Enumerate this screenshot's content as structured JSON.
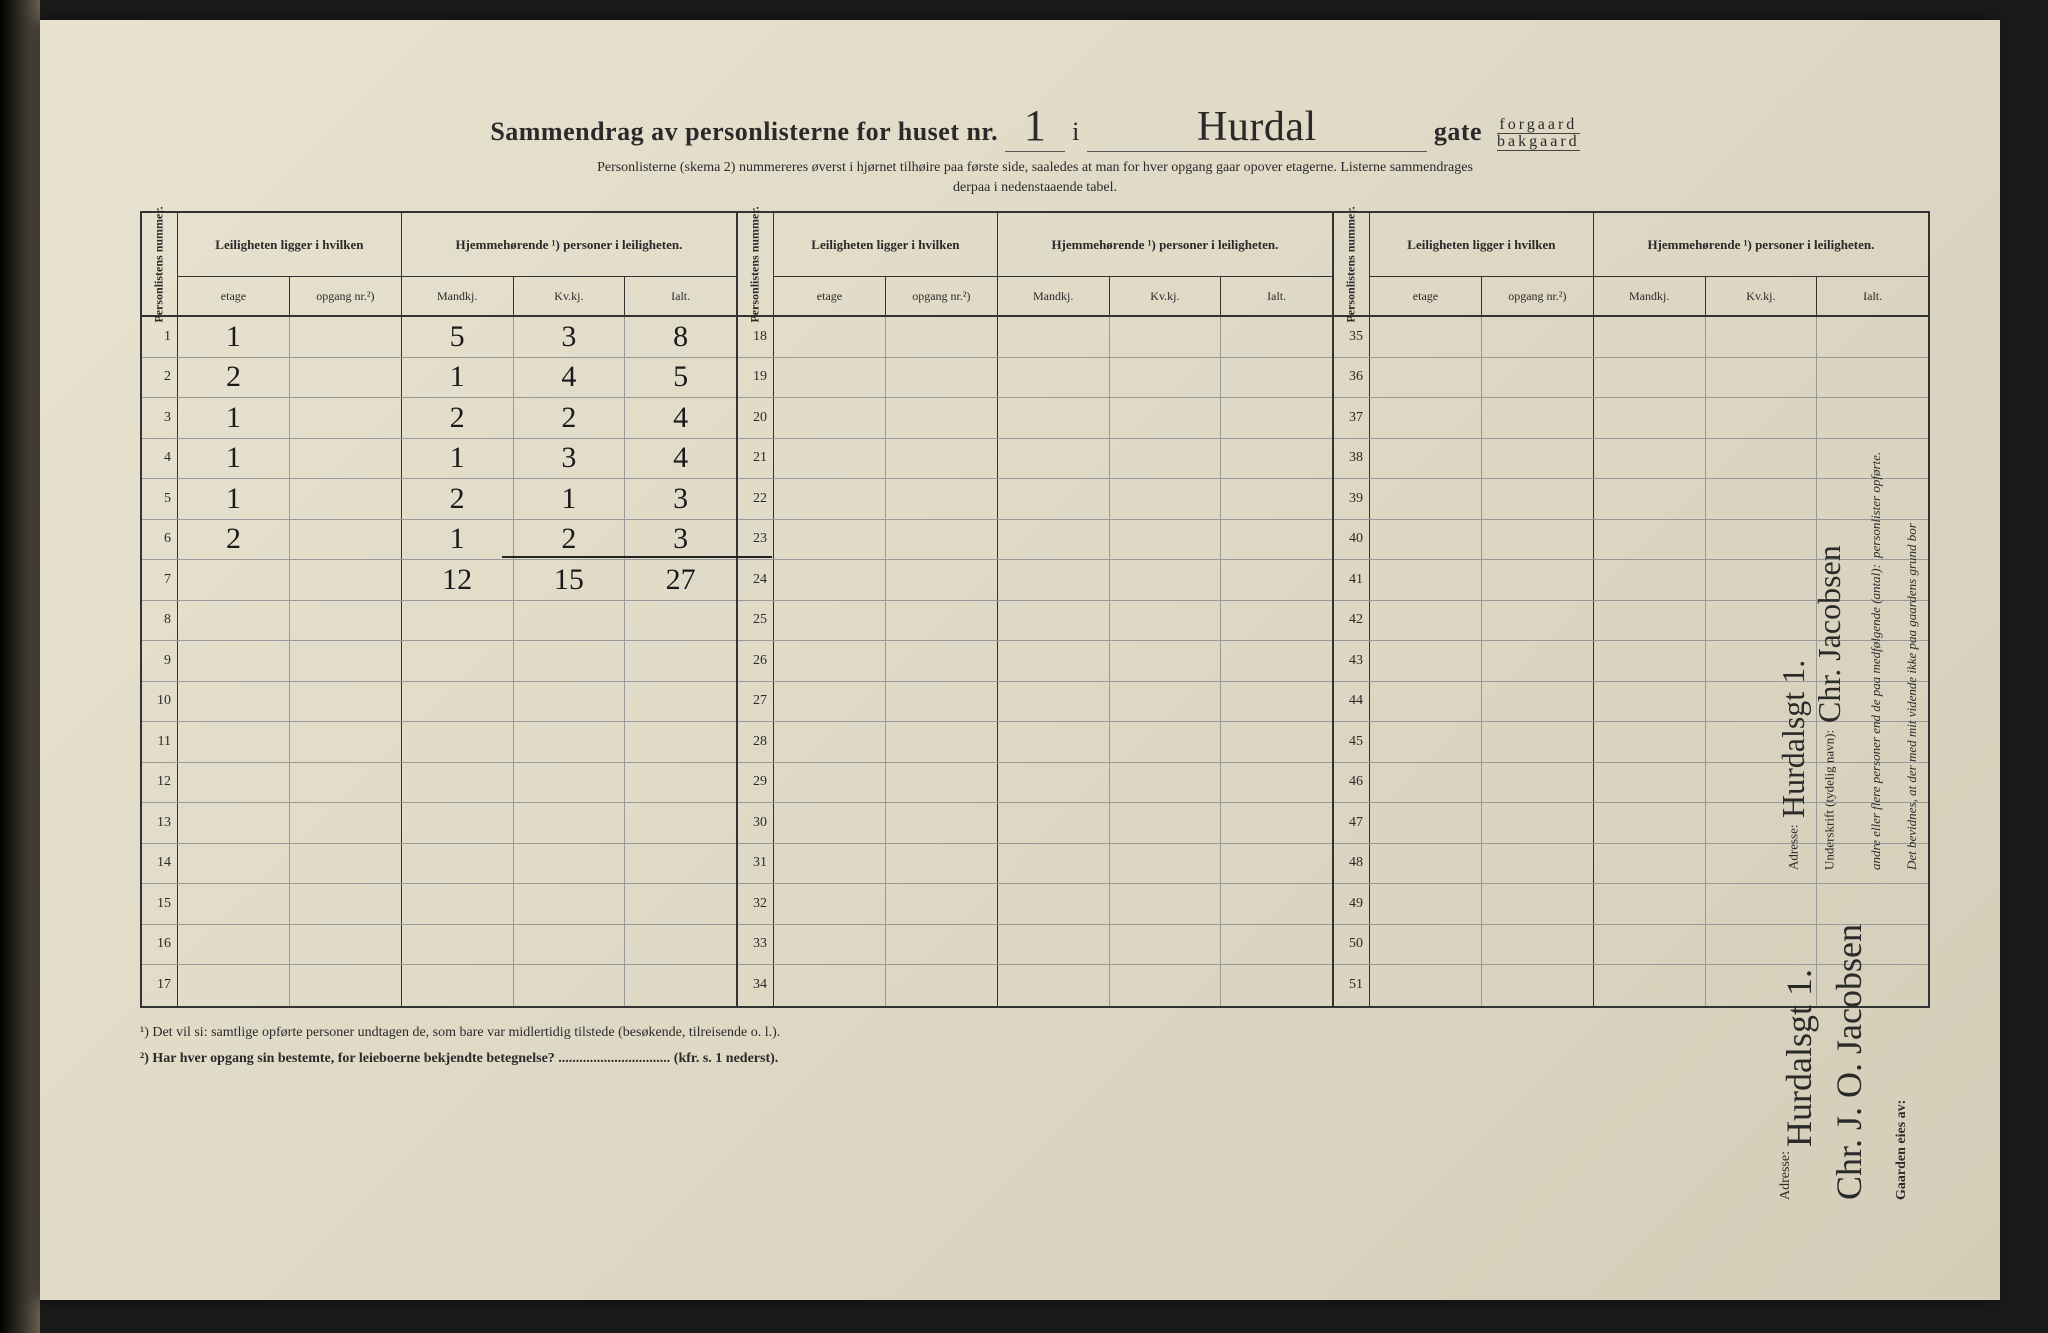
{
  "page": {
    "background_color": "#e0dac7",
    "ink_color": "#2a2a2a",
    "handwriting_color": "#1a1a1a"
  },
  "header": {
    "title_prefix": "Sammendrag av personlisterne for huset nr.",
    "house_number": "1",
    "in_word": "i",
    "street_name": "Hurdal",
    "gate_label": "gate",
    "gate_option_top": "forgaard",
    "gate_option_bottom": "bakgaard",
    "subtitle_line1": "Personlisterne (skema 2) nummereres øverst i hjørnet tilhøire paa første side, saaledes at man for hver opgang gaar opover etagerne.  Listerne sammendrages",
    "subtitle_line2": "derpaa i nedenstaaende tabel."
  },
  "table": {
    "col_personliste": "Personlistens nummer.",
    "group_leilighet": "Leiligheten ligger i hvilken",
    "group_hjemme": "Hjemmehørende ¹) personer i leiligheten.",
    "sub_etage": "etage",
    "sub_opgang": "opgang nr.²)",
    "sub_mandkj": "Mandkj.",
    "sub_kvkj": "Kv.kj.",
    "sub_ialt": "Ialt.",
    "blocks": [
      {
        "start": 1,
        "end": 17,
        "rows": [
          {
            "n": 1,
            "etage": "1",
            "opg": "",
            "m": "5",
            "k": "3",
            "i": "8"
          },
          {
            "n": 2,
            "etage": "2",
            "opg": "",
            "m": "1",
            "k": "4",
            "i": "5"
          },
          {
            "n": 3,
            "etage": "1",
            "opg": "",
            "m": "2",
            "k": "2",
            "i": "4"
          },
          {
            "n": 4,
            "etage": "1",
            "opg": "",
            "m": "1",
            "k": "3",
            "i": "4"
          },
          {
            "n": 5,
            "etage": "1",
            "opg": "",
            "m": "2",
            "k": "1",
            "i": "3"
          },
          {
            "n": 6,
            "etage": "2",
            "opg": "",
            "m": "1",
            "k": "2",
            "i": "3"
          },
          {
            "n": 7,
            "etage": "",
            "opg": "",
            "m": "12",
            "k": "15",
            "i": "27"
          },
          {
            "n": 8
          },
          {
            "n": 9
          },
          {
            "n": 10
          },
          {
            "n": 11
          },
          {
            "n": 12
          },
          {
            "n": 13
          },
          {
            "n": 14
          },
          {
            "n": 15
          },
          {
            "n": 16
          },
          {
            "n": 17
          }
        ]
      },
      {
        "start": 18,
        "end": 34,
        "rows": [
          {
            "n": 18
          },
          {
            "n": 19
          },
          {
            "n": 20
          },
          {
            "n": 21
          },
          {
            "n": 22
          },
          {
            "n": 23
          },
          {
            "n": 24
          },
          {
            "n": 25
          },
          {
            "n": 26
          },
          {
            "n": 27
          },
          {
            "n": 28
          },
          {
            "n": 29
          },
          {
            "n": 30
          },
          {
            "n": 31
          },
          {
            "n": 32
          },
          {
            "n": 33
          },
          {
            "n": 34
          }
        ]
      },
      {
        "start": 35,
        "end": 51,
        "rows": [
          {
            "n": 35
          },
          {
            "n": 36
          },
          {
            "n": 37
          },
          {
            "n": 38
          },
          {
            "n": 39
          },
          {
            "n": 40
          },
          {
            "n": 41
          },
          {
            "n": 42
          },
          {
            "n": 43
          },
          {
            "n": 44
          },
          {
            "n": 45
          },
          {
            "n": 46
          },
          {
            "n": 47
          },
          {
            "n": 48
          },
          {
            "n": 49
          },
          {
            "n": 50
          },
          {
            "n": 51
          }
        ]
      }
    ]
  },
  "footnotes": {
    "f1": "¹)   Det vil si: samtlige opførte personer undtagen de, som bare var midlertidig tilstede (besøkende, tilreisende o. l.).",
    "f2": "²)   Har hver opgang sin bestemte, for leieboerne bekjendte betegnelse? ................................ (kfr. s. 1 nederst)."
  },
  "attestation": {
    "line1": "Det bevidnes, at der med mit vidende ikke paa gaardens grund bor",
    "line2": "andre eller flere personer end de paa medfølgende (antal):",
    "line3": "personlister opførte.",
    "underskrift_label": "Underskrift (tydelig navn):",
    "underskrift_value": "Chr. Jacobsen",
    "adresse_label": "Adresse:",
    "adresse_value": "Hurdalsgt 1."
  },
  "owner": {
    "label": "Gaarden eies av:",
    "name": "Chr. J. O. Jacobsen",
    "addr_label": "Adresse:",
    "addr": "Hurdalsgt 1."
  }
}
